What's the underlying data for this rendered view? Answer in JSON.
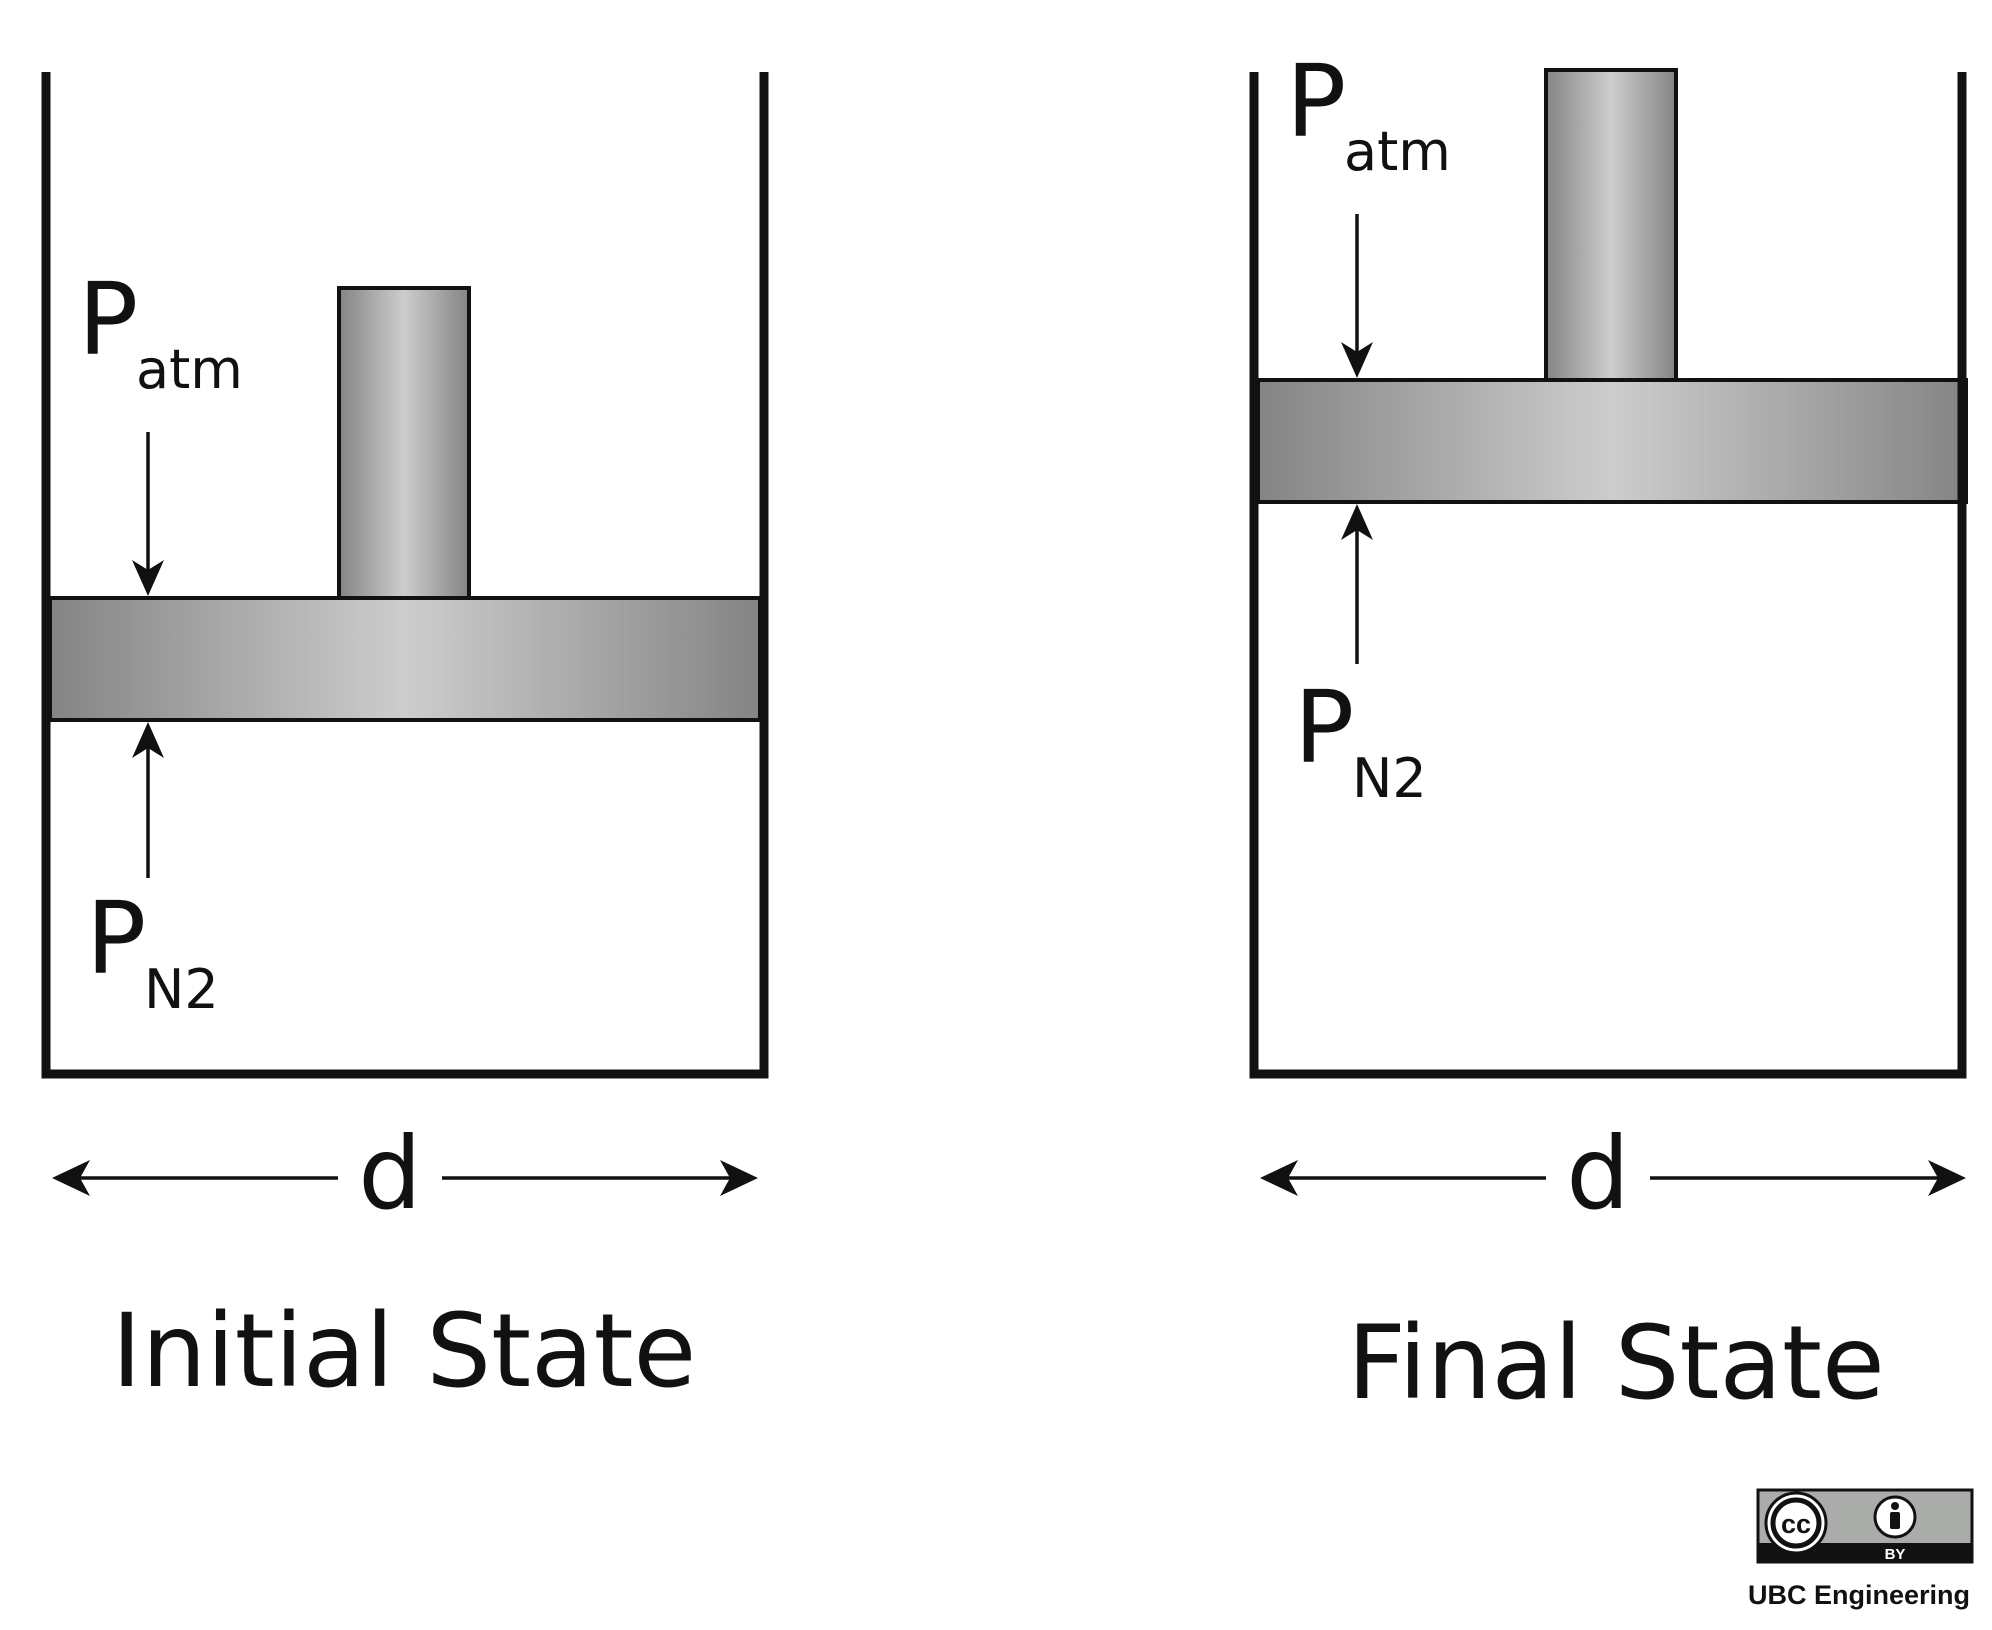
{
  "initial": {
    "patm_main": "P",
    "patm_sub": "atm",
    "pn2_main": "P",
    "pn2_sub": "N2",
    "width_label": "d",
    "caption": "Initial State"
  },
  "final": {
    "patm_main": "P",
    "patm_sub": "atm",
    "pn2_main": "P",
    "pn2_sub": "N2",
    "width_label": "d",
    "caption": "Final State"
  },
  "license": {
    "cc_text": "cc",
    "by_text": "BY",
    "credit": "UBC Engineering"
  },
  "colors": {
    "outline": "#111111",
    "metal_dark": "#848484",
    "metal_light": "#cdcdcd",
    "badge_grey": "#a9aca9"
  },
  "icons": [
    "creative-commons-icon",
    "attribution-person-icon"
  ]
}
